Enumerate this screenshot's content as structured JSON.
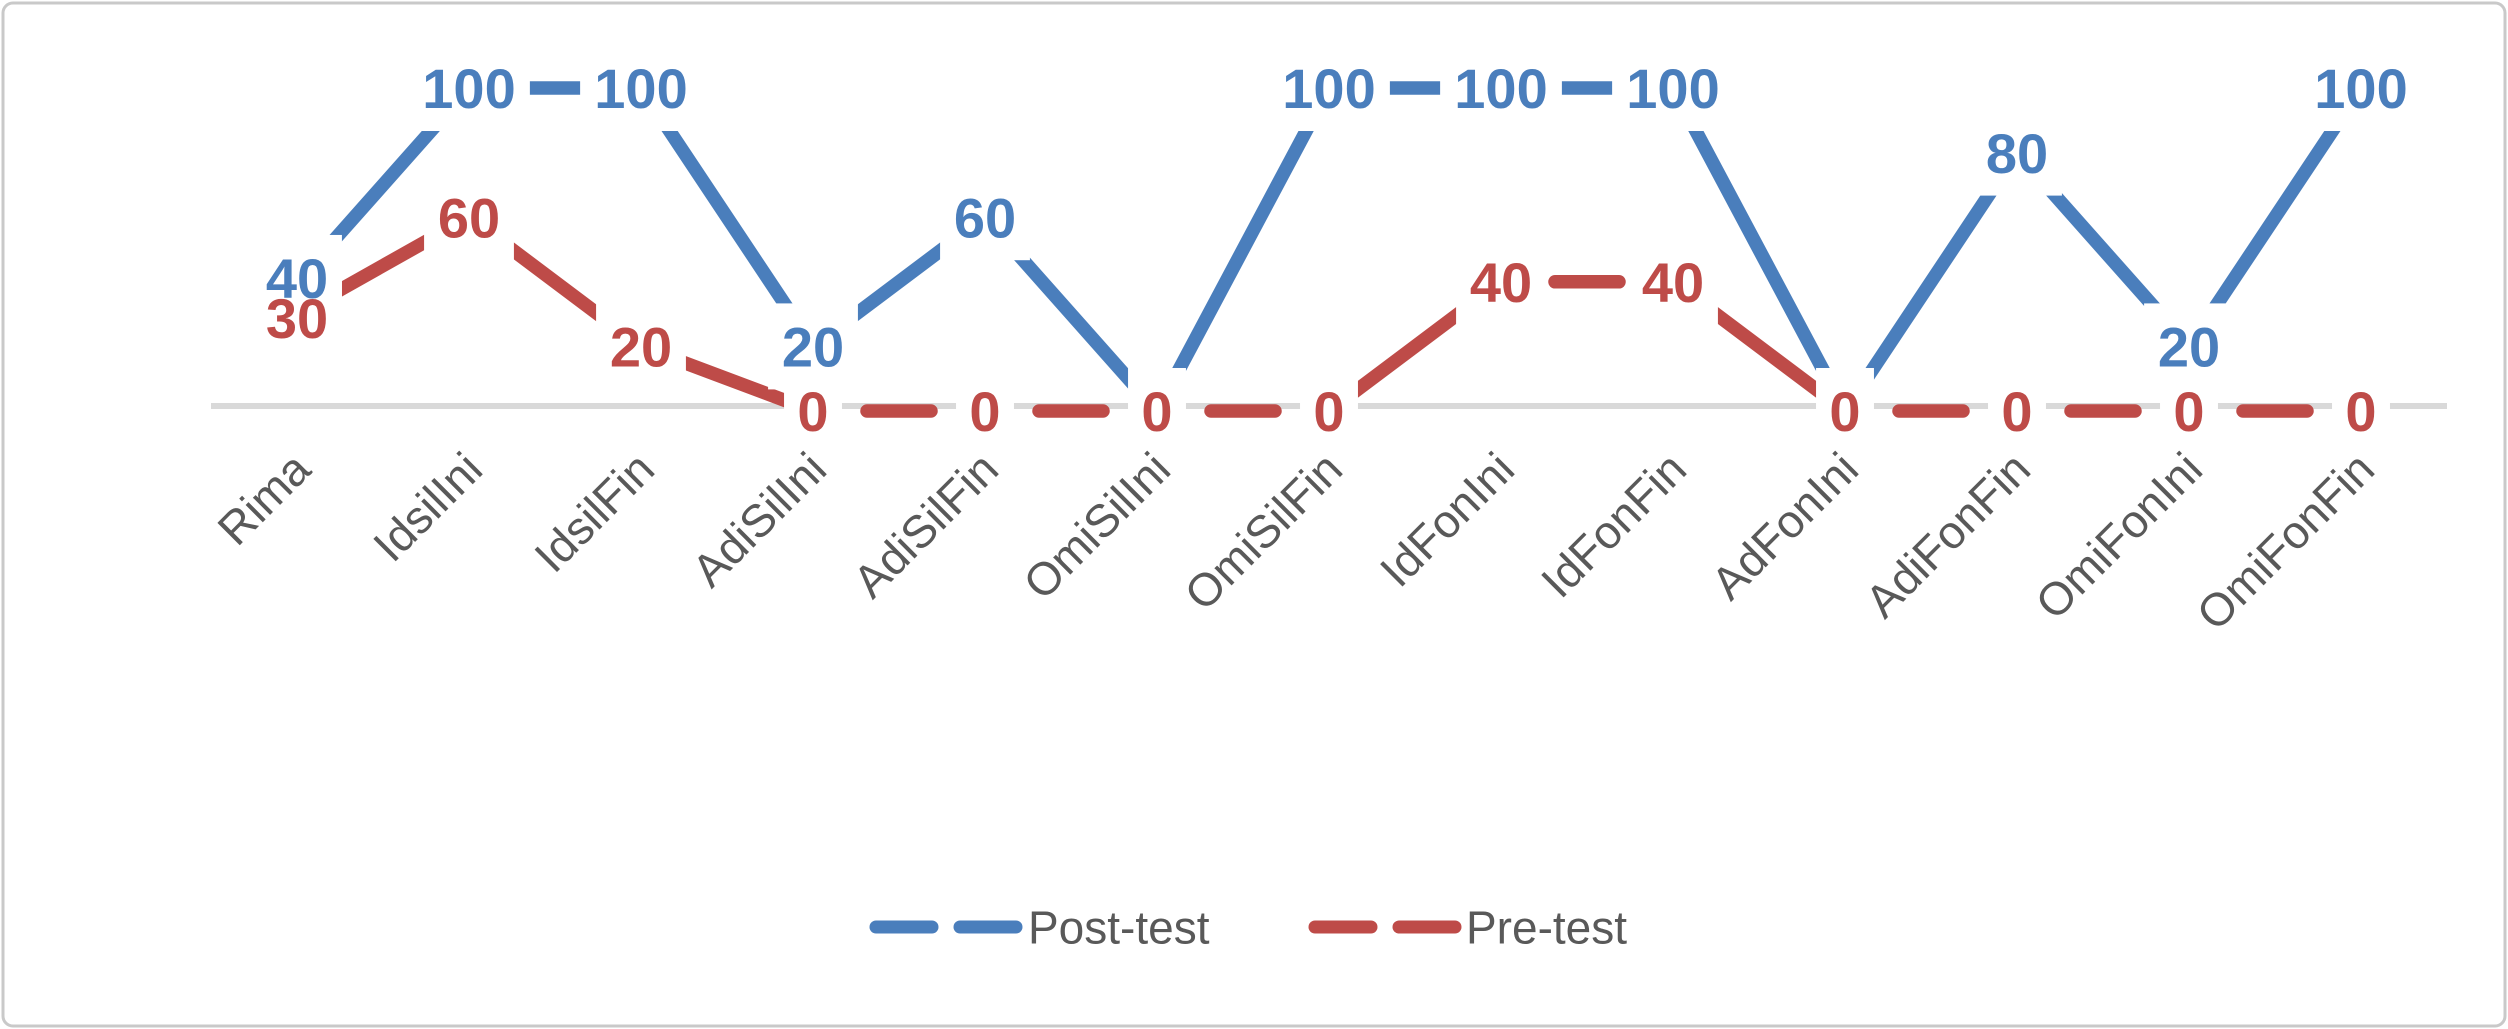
{
  "chart_data": {
    "type": "line",
    "title": "",
    "xlabel": "",
    "ylabel": "",
    "ylim": [
      0,
      100
    ],
    "grid": false,
    "line_style": "dashed",
    "legend_position": "bottom-center",
    "axis_color": "#D9D9D9",
    "text_color": "#595959",
    "background_color": "#FFFFFF",
    "border_color": "#C9C9C9",
    "categories": [
      "Rima",
      "IdsilIni",
      "IdsilFin",
      "AdiSilIni",
      "AdiSilFin",
      "OmiSilIni",
      "OmiSilFin",
      "IdFonIni",
      "IdFonFin",
      "AdFonIni",
      "AdiFonFin",
      "OmiFonIni",
      "OmiFonFin"
    ],
    "series": [
      {
        "name": "Post-test",
        "color": "#4A7EBC",
        "values": [
          40,
          100,
          100,
          20,
          60,
          0,
          100,
          100,
          100,
          0,
          80,
          20,
          100
        ],
        "hidden_label_indices": [
          5,
          9
        ],
        "labels": [
          "40",
          "100",
          "100",
          "20",
          "60",
          "0",
          "100",
          "100",
          "100",
          "0",
          "80",
          "20",
          "100"
        ]
      },
      {
        "name": "Pre-test",
        "color": "#BE4B48",
        "values": [
          30,
          60,
          20,
          0,
          0,
          0,
          0,
          40,
          40,
          0,
          0,
          0,
          0
        ],
        "hidden_label_indices": [],
        "labels": [
          "30",
          "60",
          "20",
          "0",
          "0",
          "0",
          "0",
          "40",
          "40",
          "0",
          "0",
          "0",
          "0"
        ]
      }
    ]
  }
}
